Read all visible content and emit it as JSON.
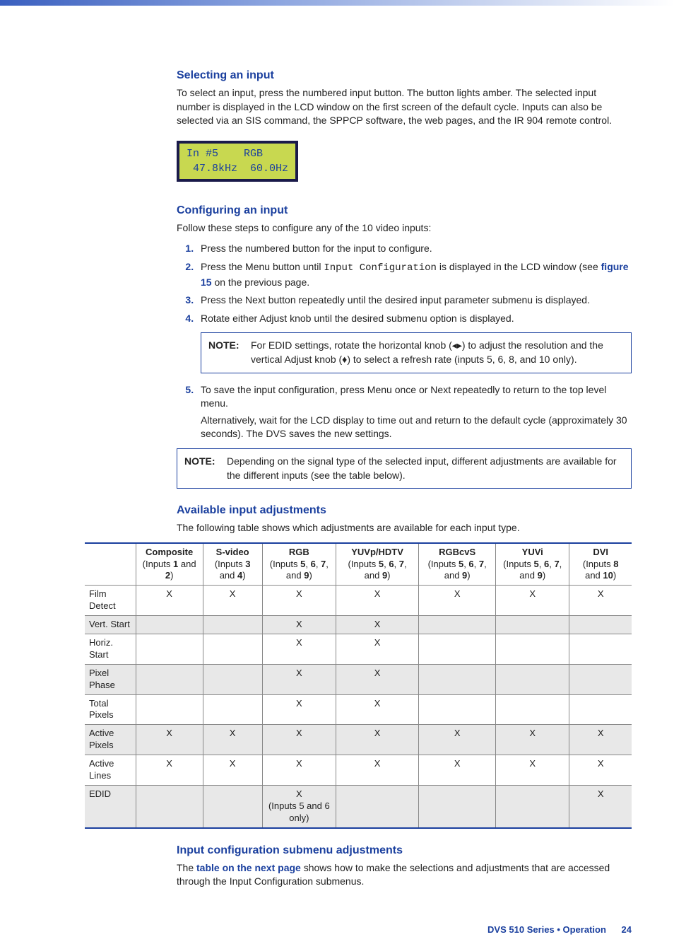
{
  "sections": {
    "selecting": {
      "title": "Selecting an input",
      "body": "To select an input, press the numbered input button. The button lights amber. The selected input number is displayed in the LCD window on the first screen of the default cycle. Inputs can also be selected via an SIS command, the SPPCP software, the web pages, and the IR 904 remote control."
    },
    "lcd": {
      "line1": "In #5    RGB",
      "line2": " 47.8kHz  60.0Hz"
    },
    "configuring": {
      "title": "Configuring an input",
      "intro": "Follow these steps to configure any of the 10 video inputs:",
      "steps": {
        "s1": "Press the numbered button for the input to configure.",
        "s2a": "Press the Menu button until ",
        "s2code": "Input Configuration",
        "s2b": " is displayed in the LCD window (see ",
        "s2link": "figure 15",
        "s2c": " on the previous page.",
        "s3": "Press the Next button repeatedly until the desired input parameter submenu is displayed.",
        "s4": "Rotate either Adjust knob until the desired submenu option is displayed.",
        "s5a": "To save the input configuration, press Menu once or Next repeatedly to return to the top level menu.",
        "s5b": "Alternatively, wait for the LCD display to time out and return to the default cycle (approximately 30 seconds). The DVS saves the new settings."
      },
      "note1_label": "NOTE:",
      "note1": "For EDID settings, rotate the horizontal knob (◂▸) to adjust the resolution and the vertical Adjust knob (♦) to select a refresh rate (inputs 5, 6, 8, and 10 only).",
      "note2_label": "NOTE:",
      "note2": "Depending on the signal type of the selected input, different adjustments are available for the different inputs (see the table below)."
    },
    "available": {
      "title": "Available input adjustments",
      "intro": "The following table shows which adjustments are available for each input type."
    },
    "inputconf": {
      "title": "Input configuration submenu adjustments",
      "body_a": "The ",
      "body_link": "table on the next page",
      "body_b": " shows how to make the selections and adjustments that are accessed through the Input Configuration submenus."
    }
  },
  "table": {
    "columns": [
      {
        "title": "",
        "sub": ""
      },
      {
        "title": "Composite",
        "sub_a": "(Inputs ",
        "sub_b": "1",
        "sub_c": " and ",
        "sub_d": "2",
        "sub_e": ")"
      },
      {
        "title": "S-video",
        "sub_a": "(Inputs ",
        "sub_b": "3",
        "sub_c": " and ",
        "sub_d": "4",
        "sub_e": ")"
      },
      {
        "title": "RGB",
        "sub_a": "(Inputs ",
        "sub_b": "5",
        "sub_c": ", ",
        "sub_d": "6",
        "sub_e": ", ",
        "sub_f": "7",
        "sub_g": ", and ",
        "sub_h": "9",
        "sub_i": ")"
      },
      {
        "title": "YUVp/HDTV",
        "sub_a": "(Inputs ",
        "sub_b": "5",
        "sub_c": ", ",
        "sub_d": "6",
        "sub_e": ", ",
        "sub_f": "7",
        "sub_g": ", and ",
        "sub_h": "9",
        "sub_i": ")"
      },
      {
        "title": "RGBcvS",
        "sub_a": "(Inputs ",
        "sub_b": "5",
        "sub_c": ", ",
        "sub_d": "6",
        "sub_e": ", ",
        "sub_f": "7",
        "sub_g": ", and ",
        "sub_h": "9",
        "sub_i": ")"
      },
      {
        "title": "YUVi",
        "sub_a": "(Inputs ",
        "sub_b": "5",
        "sub_c": ", ",
        "sub_d": "6",
        "sub_e": ", ",
        "sub_f": "7",
        "sub_g": ", and ",
        "sub_h": "9",
        "sub_i": ")"
      },
      {
        "title": "DVI",
        "sub_a": "(Inputs ",
        "sub_b": "8",
        "sub_c": " and ",
        "sub_d": "10",
        "sub_e": ")"
      }
    ],
    "rows": [
      {
        "label": "Film Detect",
        "cells": [
          "X",
          "X",
          "X",
          "X",
          "X",
          "X",
          "X"
        ],
        "shade": false
      },
      {
        "label": "Vert. Start",
        "cells": [
          "",
          "",
          "X",
          "X",
          "",
          "",
          ""
        ],
        "shade": true
      },
      {
        "label": "Horiz. Start",
        "cells": [
          "",
          "",
          "X",
          "X",
          "",
          "",
          ""
        ],
        "shade": false
      },
      {
        "label": "Pixel Phase",
        "cells": [
          "",
          "",
          "X",
          "X",
          "",
          "",
          ""
        ],
        "shade": true
      },
      {
        "label": "Total Pixels",
        "cells": [
          "",
          "",
          "X",
          "X",
          "",
          "",
          ""
        ],
        "shade": false
      },
      {
        "label": "Active Pixels",
        "cells": [
          "X",
          "X",
          "X",
          "X",
          "X",
          "X",
          "X"
        ],
        "shade": true
      },
      {
        "label": "Active Lines",
        "cells": [
          "X",
          "X",
          "X",
          "X",
          "X",
          "X",
          "X"
        ],
        "shade": false
      },
      {
        "label": "EDID",
        "cells": [
          "",
          "",
          "X\n(Inputs 5 and 6 only)",
          "",
          "",
          "",
          "X"
        ],
        "shade": true
      }
    ]
  },
  "footer": {
    "text": "DVS 510 Series • Operation",
    "page": "24"
  },
  "colors": {
    "accent": "#1a3f9e",
    "lcd_bg": "#c8d850"
  }
}
